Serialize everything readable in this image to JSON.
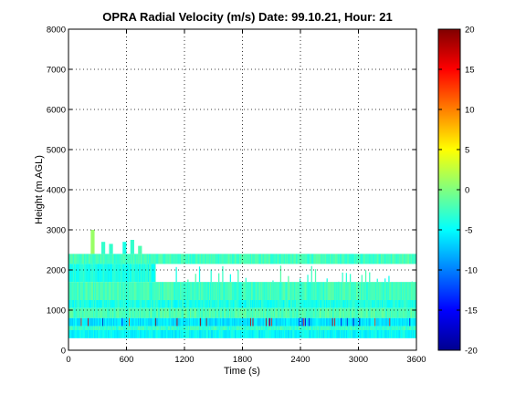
{
  "chart_data": {
    "type": "heatmap",
    "title": "OPRA Radial Velocity (m/s)  Date: 99.10.21, Hour: 21",
    "xlabel": "Time (s)",
    "ylabel": "Height (m AGL)",
    "xlim": [
      0,
      3600
    ],
    "ylim": [
      0,
      8000
    ],
    "xticks": [
      0,
      600,
      1200,
      1800,
      2400,
      3000,
      3600
    ],
    "yticks": [
      0,
      1000,
      2000,
      3000,
      4000,
      5000,
      6000,
      7000,
      8000
    ],
    "grid": true,
    "colorbar": {
      "range": [
        -20,
        20
      ],
      "ticks": [
        -20,
        -15,
        -10,
        -5,
        0,
        5,
        10,
        15,
        20
      ],
      "colormap": "jet",
      "placement": "right"
    },
    "layers": [
      {
        "t0": 0,
        "t1": 3600,
        "h0": 2150,
        "h1": 2400,
        "v": -2.5
      },
      {
        "t0": 0,
        "t1": 900,
        "h0": 1700,
        "h1": 2150,
        "v": -4.0
      },
      {
        "t0": 0,
        "t1": 3600,
        "h0": 1250,
        "h1": 1700,
        "v": -2.5
      },
      {
        "t0": 0,
        "t1": 3600,
        "h0": 1050,
        "h1": 1250,
        "v": -4.0
      },
      {
        "t0": 0,
        "t1": 3600,
        "h0": 800,
        "h1": 1050,
        "v": -2.0
      },
      {
        "t0": 0,
        "t1": 3600,
        "h0": 600,
        "h1": 800,
        "v": -6.0
      },
      {
        "t0": 0,
        "t1": 3600,
        "h0": 500,
        "h1": 600,
        "v": -3.0
      },
      {
        "t0": 0,
        "t1": 3600,
        "h0": 300,
        "h1": 500,
        "v": -5.0
      }
    ],
    "gaps": [
      {
        "t0": 950,
        "t1": 3600,
        "h0": 1700,
        "h1": 2150
      }
    ],
    "spikes": [
      {
        "t": 230,
        "h0": 2400,
        "h1": 3000,
        "v": 1.0
      },
      {
        "t": 340,
        "h0": 2400,
        "h1": 2700,
        "v": -3.0
      },
      {
        "t": 420,
        "h0": 2400,
        "h1": 2650,
        "v": -3.0
      },
      {
        "t": 560,
        "h0": 2400,
        "h1": 2700,
        "v": -4.0
      },
      {
        "t": 640,
        "h0": 2400,
        "h1": 2750,
        "v": -3.0
      },
      {
        "t": 720,
        "h0": 2400,
        "h1": 2600,
        "v": -2.0
      }
    ]
  }
}
